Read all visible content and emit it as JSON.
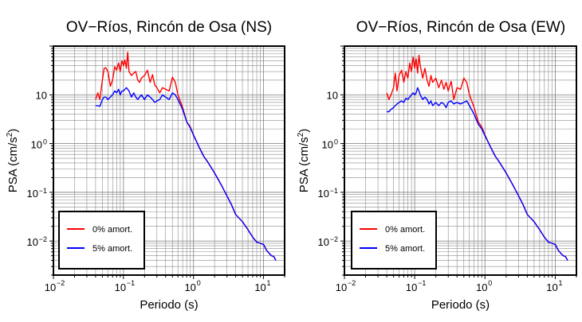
{
  "chart_data": [
    {
      "type": "line",
      "title": "OV−Ríos, Rincón de Osa (NS)",
      "xlabel": "Periodo (s)",
      "ylabel_main": "PSA (cm/s",
      "ylabel_sup": "2",
      "ylabel_close": ")",
      "xscale": "log",
      "yscale": "log",
      "xlim": [
        0.01,
        20
      ],
      "ylim": [
        0.002,
        100
      ],
      "grid": true,
      "legend_placement": "bottom-left",
      "x_ticks": [
        {
          "value": 0.01,
          "base": "10",
          "exp": "−2"
        },
        {
          "value": 0.1,
          "base": "10",
          "exp": "−1"
        },
        {
          "value": 1,
          "base": "10",
          "exp": "0"
        },
        {
          "value": 10,
          "base": "10",
          "exp": "1"
        }
      ],
      "y_ticks": [
        {
          "value": 0.01,
          "base": "10",
          "exp": "−2"
        },
        {
          "value": 0.1,
          "base": "10",
          "exp": "−1"
        },
        {
          "value": 1,
          "base": "10",
          "exp": "0"
        },
        {
          "value": 10,
          "base": "10",
          "exp": ""
        }
      ],
      "series": [
        {
          "name": "0% amort.",
          "color": "#ff0000",
          "x": [
            0.04,
            0.043,
            0.046,
            0.05,
            0.053,
            0.056,
            0.06,
            0.065,
            0.07,
            0.075,
            0.08,
            0.085,
            0.09,
            0.095,
            0.1,
            0.105,
            0.11,
            0.115,
            0.12,
            0.13,
            0.14,
            0.15,
            0.16,
            0.17,
            0.18,
            0.2,
            0.22,
            0.24,
            0.26,
            0.28,
            0.3,
            0.33,
            0.36,
            0.4,
            0.45,
            0.5,
            0.55,
            0.6,
            0.7,
            0.8,
            0.9,
            1.0,
            1.2,
            1.4,
            1.6,
            2.0,
            2.5,
            3.0,
            3.5,
            4.0,
            5.0,
            6.0,
            7.0,
            8.0,
            9.0,
            10.0,
            11.0,
            12.0,
            13.0,
            14.0,
            15.0
          ],
          "y": [
            8,
            11,
            8,
            20,
            35,
            36,
            30,
            15,
            20,
            38,
            32,
            45,
            30,
            50,
            40,
            52,
            35,
            75,
            30,
            25,
            28,
            30,
            20,
            18,
            22,
            25,
            32,
            18,
            26,
            16,
            14,
            11,
            14,
            13,
            12,
            23,
            18,
            10,
            5.5,
            2.8,
            2.2,
            1.5,
            0.85,
            0.55,
            0.42,
            0.25,
            0.14,
            0.085,
            0.055,
            0.035,
            0.025,
            0.017,
            0.012,
            0.0095,
            0.009,
            0.0085,
            0.0065,
            0.0056,
            0.005,
            0.0048,
            0.004
          ]
        },
        {
          "name": "5% amort.",
          "color": "#0000ff",
          "x": [
            0.04,
            0.043,
            0.046,
            0.05,
            0.053,
            0.056,
            0.06,
            0.065,
            0.07,
            0.075,
            0.08,
            0.085,
            0.09,
            0.095,
            0.1,
            0.105,
            0.11,
            0.115,
            0.12,
            0.13,
            0.14,
            0.15,
            0.16,
            0.17,
            0.18,
            0.2,
            0.22,
            0.24,
            0.26,
            0.28,
            0.3,
            0.33,
            0.36,
            0.4,
            0.45,
            0.5,
            0.55,
            0.6,
            0.7,
            0.8,
            0.9,
            1.0,
            1.2,
            1.4,
            1.6,
            2.0,
            2.5,
            3.0,
            3.5,
            4.0,
            5.0,
            6.0,
            7.0,
            8.0,
            9.0,
            10.0,
            11.0,
            12.0,
            13.0,
            14.0,
            15.0
          ],
          "y": [
            6,
            6,
            5.8,
            8,
            9,
            9,
            8,
            9,
            10,
            12,
            11,
            13,
            10,
            12,
            12,
            13,
            14,
            13,
            12,
            9,
            11,
            9,
            8,
            9,
            10,
            8,
            10,
            9,
            8,
            7,
            7.5,
            8,
            10,
            9,
            8,
            11,
            10,
            8,
            5,
            2.8,
            2.1,
            1.5,
            0.85,
            0.55,
            0.42,
            0.25,
            0.14,
            0.085,
            0.055,
            0.035,
            0.025,
            0.017,
            0.012,
            0.0095,
            0.009,
            0.0085,
            0.0065,
            0.0056,
            0.005,
            0.0048,
            0.004
          ]
        }
      ]
    },
    {
      "type": "line",
      "title": "OV−Ríos, Rincón de Osa (EW)",
      "xlabel": "Periodo (s)",
      "ylabel_main": "PSA (cm/s",
      "ylabel_sup": "2",
      "ylabel_close": ")",
      "xscale": "log",
      "yscale": "log",
      "xlim": [
        0.01,
        20
      ],
      "ylim": [
        0.002,
        100
      ],
      "grid": true,
      "legend_placement": "bottom-left",
      "x_ticks": [
        {
          "value": 0.01,
          "base": "10",
          "exp": "−2"
        },
        {
          "value": 0.1,
          "base": "10",
          "exp": "−1"
        },
        {
          "value": 1,
          "base": "10",
          "exp": "0"
        },
        {
          "value": 10,
          "base": "10",
          "exp": "1"
        }
      ],
      "y_ticks": [
        {
          "value": 0.01,
          "base": "10",
          "exp": "−2"
        },
        {
          "value": 0.1,
          "base": "10",
          "exp": "−1"
        },
        {
          "value": 1,
          "base": "10",
          "exp": "0"
        },
        {
          "value": 10,
          "base": "10",
          "exp": ""
        }
      ],
      "series": [
        {
          "name": "0% amort.",
          "color": "#ff0000",
          "x": [
            0.04,
            0.043,
            0.046,
            0.05,
            0.053,
            0.056,
            0.06,
            0.065,
            0.07,
            0.075,
            0.08,
            0.085,
            0.09,
            0.095,
            0.1,
            0.105,
            0.11,
            0.115,
            0.12,
            0.13,
            0.14,
            0.15,
            0.16,
            0.17,
            0.18,
            0.2,
            0.22,
            0.24,
            0.26,
            0.28,
            0.3,
            0.33,
            0.36,
            0.4,
            0.45,
            0.5,
            0.55,
            0.6,
            0.7,
            0.8,
            0.9,
            1.0,
            1.2,
            1.4,
            1.6,
            2.0,
            2.5,
            3.0,
            3.5,
            4.0,
            5.0,
            6.0,
            7.0,
            8.0,
            9.0,
            10.0,
            11.0,
            12.0,
            13.0,
            14.0,
            15.0
          ],
          "y": [
            11,
            8,
            10,
            14,
            28,
            12,
            25,
            32,
            18,
            30,
            22,
            45,
            30,
            60,
            35,
            55,
            28,
            65,
            40,
            22,
            35,
            20,
            15,
            25,
            18,
            22,
            14,
            20,
            13,
            18,
            12,
            19,
            8,
            14,
            13,
            22,
            18,
            10,
            5.5,
            2.8,
            2.2,
            1.5,
            0.85,
            0.55,
            0.42,
            0.25,
            0.14,
            0.085,
            0.055,
            0.035,
            0.025,
            0.017,
            0.012,
            0.0095,
            0.009,
            0.0085,
            0.0065,
            0.0056,
            0.005,
            0.0048,
            0.004
          ]
        },
        {
          "name": "5% amort.",
          "color": "#0000ff",
          "x": [
            0.04,
            0.043,
            0.046,
            0.05,
            0.053,
            0.056,
            0.06,
            0.065,
            0.07,
            0.075,
            0.08,
            0.085,
            0.09,
            0.095,
            0.1,
            0.105,
            0.11,
            0.115,
            0.12,
            0.13,
            0.14,
            0.15,
            0.16,
            0.17,
            0.18,
            0.2,
            0.22,
            0.24,
            0.26,
            0.28,
            0.3,
            0.33,
            0.36,
            0.4,
            0.45,
            0.5,
            0.55,
            0.6,
            0.7,
            0.8,
            0.9,
            1.0,
            1.2,
            1.4,
            1.6,
            2.0,
            2.5,
            3.0,
            3.5,
            4.0,
            5.0,
            6.0,
            7.0,
            8.0,
            9.0,
            10.0,
            11.0,
            12.0,
            13.0,
            14.0,
            15.0
          ],
          "y": [
            4.5,
            4.5,
            5,
            5.5,
            6,
            6.5,
            7,
            7.5,
            7,
            8.5,
            8,
            9,
            10,
            11,
            10,
            11,
            14,
            12,
            10,
            8,
            9,
            8,
            6.5,
            7.5,
            6,
            7,
            6,
            7,
            6.5,
            5.5,
            7,
            7.5,
            6.5,
            7,
            6.5,
            7,
            7.5,
            6,
            4,
            2.5,
            2.0,
            1.45,
            0.85,
            0.55,
            0.42,
            0.25,
            0.14,
            0.085,
            0.055,
            0.035,
            0.025,
            0.017,
            0.012,
            0.0095,
            0.009,
            0.0085,
            0.0065,
            0.0056,
            0.005,
            0.0048,
            0.004
          ]
        }
      ]
    }
  ]
}
